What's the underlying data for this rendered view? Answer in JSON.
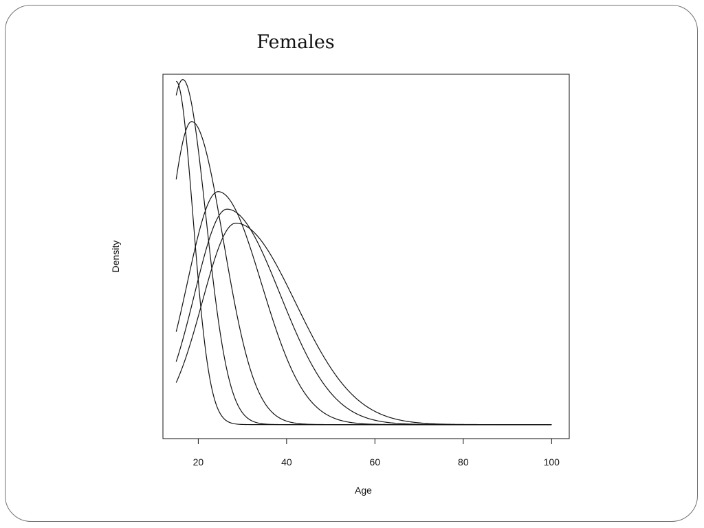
{
  "slide": {
    "title": "Females"
  },
  "chart_data": {
    "type": "line",
    "title": "Females",
    "xlabel": "Age",
    "ylabel": "Density",
    "xlim": [
      12,
      104
    ],
    "ylim": [
      -0.004,
      0.1
    ],
    "x_ticks": [
      20,
      40,
      60,
      80,
      100
    ],
    "y_ticks": [],
    "grid": false,
    "legend": "none",
    "line_color": "#111111",
    "x_range": [
      15,
      100
    ],
    "series": [
      {
        "mode": 15,
        "peak": 0.098,
        "right_sd": 3.8,
        "start_value": 0.095
      },
      {
        "mode": 16.5,
        "peak": 0.0985,
        "right_sd": 5.2,
        "start_value": 0.094
      },
      {
        "mode": 18.5,
        "peak": 0.0865,
        "right_sd": 7.2,
        "start_value": 0.07
      },
      {
        "mode": 24.5,
        "peak": 0.0665,
        "right_sd": 9.8,
        "start_value": 0.0265
      },
      {
        "mode": 26.5,
        "peak": 0.0615,
        "right_sd": 12.0,
        "start_value": 0.018
      },
      {
        "mode": 28.5,
        "peak": 0.0575,
        "right_sd": 13.5,
        "start_value": 0.012
      }
    ]
  }
}
